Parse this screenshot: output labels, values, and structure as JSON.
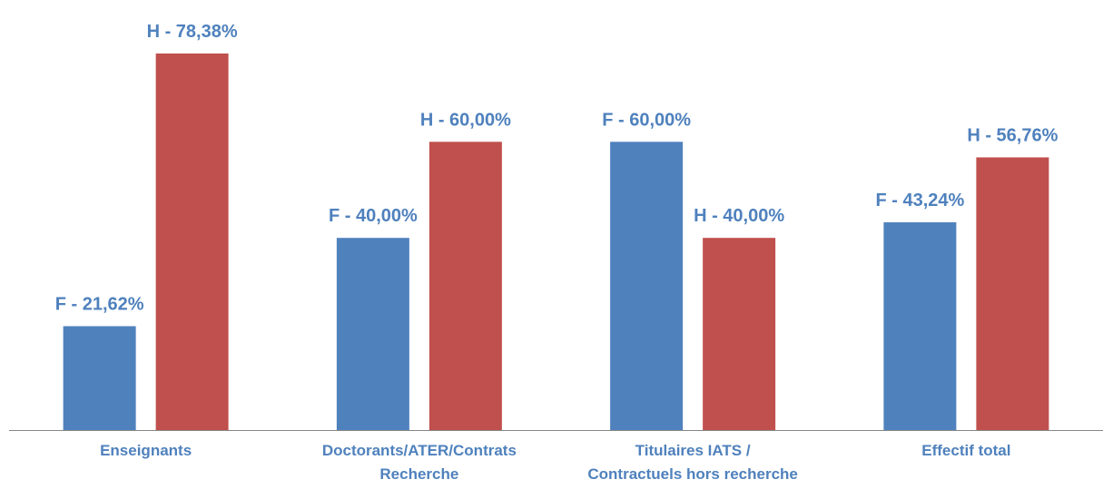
{
  "chart_data": {
    "type": "bar",
    "categories": [
      "Enseignants",
      "Doctorants/ATER/Contrats\nRecherche",
      "Titulaires IATS /\nContractuels hors recherche",
      "Effectif total"
    ],
    "series": [
      {
        "color": "#4f81bd",
        "values": [
          21.62,
          40,
          60,
          43.24
        ],
        "value_labels": [
          "F - 21,62%",
          "F - 40,00%",
          "F - 60,00%",
          "F - 43,24%"
        ]
      },
      {
        "color": "#c0504d",
        "values": [
          78.38,
          60,
          40,
          56.76
        ],
        "value_labels": [
          "H - 78,38%",
          "H - 60,00%",
          "H - 40,00%",
          "H - 56,76%"
        ]
      }
    ],
    "ylim": [
      0,
      80
    ],
    "label_color": "#4f81bd",
    "grid": false
  }
}
